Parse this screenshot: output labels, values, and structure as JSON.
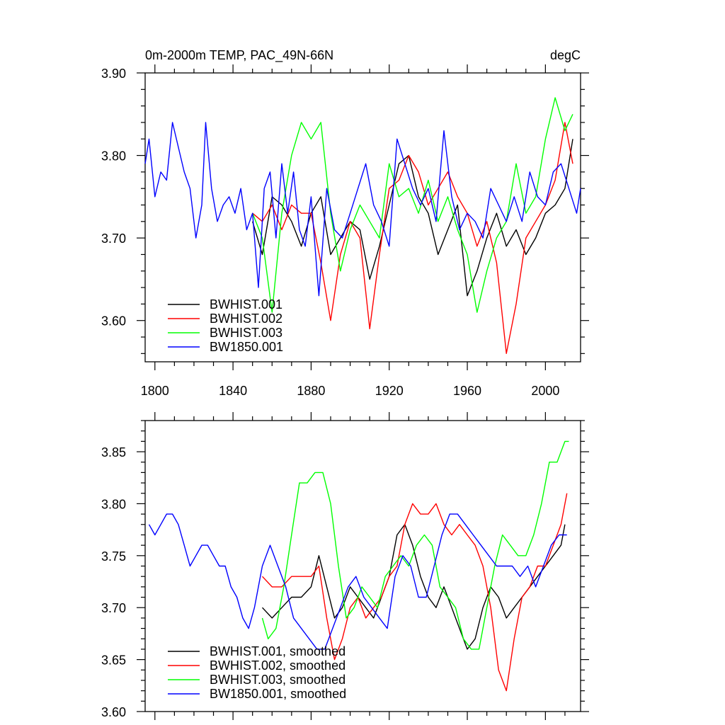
{
  "chart_data": [
    {
      "type": "line",
      "title_left": "0m-2000m TEMP, PAC_49N-66N",
      "title_right": "degC",
      "xlim": [
        1795,
        2018
      ],
      "ylim": [
        3.55,
        3.9
      ],
      "xticks": [
        1800,
        1840,
        1880,
        1920,
        1960,
        2000
      ],
      "yticks": [
        3.6,
        3.7,
        3.8,
        3.9
      ],
      "ytick_labels": [
        "3.60",
        "3.70",
        "3.80",
        "3.90"
      ],
      "legend_position": "bottom-left",
      "series": [
        {
          "name": "BWHIST.001",
          "color": "#000000",
          "x": [
            1850,
            1855,
            1860,
            1865,
            1870,
            1875,
            1880,
            1885,
            1890,
            1895,
            1900,
            1905,
            1910,
            1915,
            1920,
            1925,
            1930,
            1935,
            1940,
            1945,
            1950,
            1955,
            1960,
            1965,
            1970,
            1975,
            1980,
            1985,
            1990,
            1995,
            2000,
            2005,
            2010,
            2014
          ],
          "y": [
            3.72,
            3.68,
            3.75,
            3.74,
            3.72,
            3.69,
            3.73,
            3.75,
            3.68,
            3.7,
            3.72,
            3.71,
            3.65,
            3.69,
            3.74,
            3.79,
            3.8,
            3.75,
            3.73,
            3.68,
            3.71,
            3.74,
            3.63,
            3.66,
            3.7,
            3.73,
            3.69,
            3.71,
            3.68,
            3.7,
            3.73,
            3.74,
            3.76,
            3.82
          ]
        },
        {
          "name": "BWHIST.002",
          "color": "#ff0000",
          "x": [
            1850,
            1855,
            1860,
            1865,
            1870,
            1875,
            1880,
            1885,
            1890,
            1895,
            1900,
            1905,
            1910,
            1915,
            1920,
            1925,
            1930,
            1935,
            1940,
            1945,
            1950,
            1955,
            1960,
            1965,
            1970,
            1975,
            1980,
            1985,
            1990,
            1995,
            2000,
            2005,
            2010,
            2014
          ],
          "y": [
            3.73,
            3.72,
            3.74,
            3.71,
            3.74,
            3.73,
            3.73,
            3.67,
            3.6,
            3.68,
            3.72,
            3.7,
            3.59,
            3.68,
            3.76,
            3.77,
            3.8,
            3.78,
            3.74,
            3.76,
            3.78,
            3.75,
            3.73,
            3.69,
            3.72,
            3.67,
            3.56,
            3.62,
            3.7,
            3.72,
            3.74,
            3.77,
            3.84,
            3.79
          ]
        },
        {
          "name": "BWHIST.003",
          "color": "#00ff00",
          "x": [
            1850,
            1855,
            1860,
            1865,
            1870,
            1875,
            1880,
            1885,
            1890,
            1895,
            1900,
            1905,
            1910,
            1915,
            1920,
            1925,
            1930,
            1935,
            1940,
            1945,
            1950,
            1955,
            1960,
            1965,
            1970,
            1975,
            1980,
            1985,
            1990,
            1995,
            2000,
            2005,
            2010,
            2014
          ],
          "y": [
            3.73,
            3.7,
            3.61,
            3.73,
            3.8,
            3.84,
            3.82,
            3.84,
            3.73,
            3.66,
            3.71,
            3.74,
            3.72,
            3.7,
            3.79,
            3.75,
            3.76,
            3.73,
            3.77,
            3.72,
            3.75,
            3.71,
            3.68,
            3.61,
            3.66,
            3.7,
            3.72,
            3.79,
            3.73,
            3.75,
            3.82,
            3.87,
            3.83,
            3.85
          ]
        },
        {
          "name": "BW1850.001",
          "color": "#0000ff",
          "x": [
            1795,
            1797,
            1800,
            1803,
            1806,
            1809,
            1812,
            1815,
            1818,
            1821,
            1824,
            1826,
            1829,
            1832,
            1835,
            1838,
            1841,
            1844,
            1847,
            1850,
            1853,
            1856,
            1859,
            1862,
            1865,
            1868,
            1871,
            1874,
            1877,
            1880,
            1884,
            1888,
            1892,
            1896,
            1900,
            1904,
            1908,
            1912,
            1916,
            1920,
            1924,
            1928,
            1932,
            1936,
            1940,
            1944,
            1948,
            1952,
            1956,
            1960,
            1964,
            1968,
            1972,
            1976,
            1980,
            1984,
            1988,
            1992,
            1996,
            2000,
            2004,
            2008,
            2012,
            2016,
            2018
          ],
          "y": [
            3.79,
            3.82,
            3.75,
            3.78,
            3.77,
            3.84,
            3.81,
            3.78,
            3.76,
            3.7,
            3.74,
            3.84,
            3.76,
            3.72,
            3.74,
            3.75,
            3.73,
            3.76,
            3.71,
            3.73,
            3.64,
            3.76,
            3.78,
            3.7,
            3.79,
            3.73,
            3.78,
            3.71,
            3.69,
            3.75,
            3.63,
            3.76,
            3.71,
            3.7,
            3.73,
            3.76,
            3.79,
            3.74,
            3.72,
            3.69,
            3.82,
            3.79,
            3.76,
            3.74,
            3.76,
            3.72,
            3.83,
            3.75,
            3.71,
            3.73,
            3.72,
            3.7,
            3.76,
            3.74,
            3.72,
            3.75,
            3.72,
            3.78,
            3.75,
            3.74,
            3.78,
            3.79,
            3.76,
            3.73,
            3.76
          ]
        }
      ]
    },
    {
      "type": "line",
      "xlim": [
        1795,
        2018
      ],
      "ylim": [
        3.6,
        3.88
      ],
      "xticks": [
        1800,
        1840,
        1880,
        1920,
        1960,
        2000
      ],
      "yticks": [
        3.6,
        3.65,
        3.7,
        3.75,
        3.8,
        3.85
      ],
      "ytick_labels": [
        "3.60",
        "3.65",
        "3.70",
        "3.75",
        "3.80",
        "3.85"
      ],
      "legend_position": "bottom-left",
      "series": [
        {
          "name": "BWHIST.001, smoothed",
          "color": "#000000",
          "x": [
            1855,
            1860,
            1865,
            1870,
            1875,
            1880,
            1884,
            1888,
            1892,
            1896,
            1900,
            1904,
            1908,
            1912,
            1916,
            1920,
            1924,
            1928,
            1932,
            1936,
            1940,
            1944,
            1948,
            1952,
            1956,
            1960,
            1964,
            1968,
            1972,
            1976,
            1980,
            1984,
            1988,
            1992,
            1996,
            2000,
            2004,
            2008,
            2010
          ],
          "y": [
            3.7,
            3.69,
            3.7,
            3.71,
            3.71,
            3.72,
            3.75,
            3.72,
            3.69,
            3.7,
            3.72,
            3.71,
            3.7,
            3.69,
            3.71,
            3.73,
            3.77,
            3.78,
            3.76,
            3.73,
            3.71,
            3.7,
            3.72,
            3.7,
            3.68,
            3.66,
            3.67,
            3.7,
            3.72,
            3.71,
            3.69,
            3.7,
            3.71,
            3.72,
            3.73,
            3.74,
            3.75,
            3.76,
            3.78
          ]
        },
        {
          "name": "BWHIST.002, smoothed",
          "color": "#ff0000",
          "x": [
            1855,
            1860,
            1865,
            1870,
            1875,
            1880,
            1884,
            1888,
            1892,
            1896,
            1900,
            1904,
            1908,
            1912,
            1916,
            1920,
            1924,
            1928,
            1932,
            1936,
            1940,
            1944,
            1948,
            1952,
            1956,
            1960,
            1964,
            1968,
            1972,
            1976,
            1980,
            1984,
            1988,
            1992,
            1996,
            2000,
            2004,
            2008,
            2011
          ],
          "y": [
            3.73,
            3.72,
            3.72,
            3.73,
            3.73,
            3.73,
            3.74,
            3.69,
            3.65,
            3.67,
            3.7,
            3.71,
            3.69,
            3.7,
            3.71,
            3.73,
            3.74,
            3.78,
            3.8,
            3.79,
            3.79,
            3.8,
            3.78,
            3.77,
            3.78,
            3.77,
            3.76,
            3.74,
            3.7,
            3.64,
            3.62,
            3.67,
            3.71,
            3.72,
            3.74,
            3.74,
            3.76,
            3.78,
            3.81
          ]
        },
        {
          "name": "BWHIST.003, smoothed",
          "color": "#00ff00",
          "x": [
            1855,
            1858,
            1862,
            1866,
            1870,
            1874,
            1878,
            1882,
            1886,
            1890,
            1894,
            1898,
            1902,
            1906,
            1910,
            1914,
            1918,
            1922,
            1926,
            1930,
            1934,
            1938,
            1942,
            1946,
            1950,
            1954,
            1958,
            1962,
            1966,
            1970,
            1974,
            1978,
            1982,
            1986,
            1990,
            1994,
            1998,
            2002,
            2006,
            2010,
            2012
          ],
          "y": [
            3.69,
            3.67,
            3.68,
            3.72,
            3.77,
            3.82,
            3.82,
            3.83,
            3.83,
            3.8,
            3.74,
            3.69,
            3.7,
            3.72,
            3.71,
            3.7,
            3.73,
            3.74,
            3.75,
            3.74,
            3.76,
            3.77,
            3.76,
            3.72,
            3.71,
            3.7,
            3.67,
            3.66,
            3.66,
            3.7,
            3.74,
            3.77,
            3.76,
            3.75,
            3.75,
            3.77,
            3.8,
            3.84,
            3.84,
            3.86,
            3.86
          ]
        },
        {
          "name": "BW1850.001, smoothed",
          "color": "#0000ff",
          "x": [
            1797,
            1800,
            1803,
            1806,
            1809,
            1812,
            1815,
            1818,
            1821,
            1824,
            1827,
            1830,
            1833,
            1836,
            1839,
            1842,
            1845,
            1848,
            1851,
            1855,
            1859,
            1863,
            1867,
            1871,
            1875,
            1879,
            1883,
            1887,
            1891,
            1895,
            1899,
            1903,
            1907,
            1911,
            1915,
            1919,
            1923,
            1927,
            1931,
            1935,
            1939,
            1943,
            1947,
            1951,
            1955,
            1959,
            1963,
            1967,
            1971,
            1975,
            1979,
            1983,
            1987,
            1991,
            1995,
            1999,
            2003,
            2007,
            2011
          ],
          "y": [
            3.78,
            3.77,
            3.78,
            3.79,
            3.79,
            3.78,
            3.76,
            3.74,
            3.75,
            3.76,
            3.76,
            3.75,
            3.74,
            3.74,
            3.72,
            3.71,
            3.69,
            3.68,
            3.7,
            3.74,
            3.76,
            3.74,
            3.72,
            3.69,
            3.68,
            3.67,
            3.66,
            3.66,
            3.68,
            3.7,
            3.72,
            3.73,
            3.71,
            3.7,
            3.69,
            3.68,
            3.73,
            3.75,
            3.74,
            3.71,
            3.71,
            3.74,
            3.77,
            3.79,
            3.79,
            3.78,
            3.77,
            3.76,
            3.75,
            3.74,
            3.74,
            3.74,
            3.73,
            3.74,
            3.72,
            3.74,
            3.76,
            3.77,
            3.77
          ]
        }
      ]
    }
  ]
}
